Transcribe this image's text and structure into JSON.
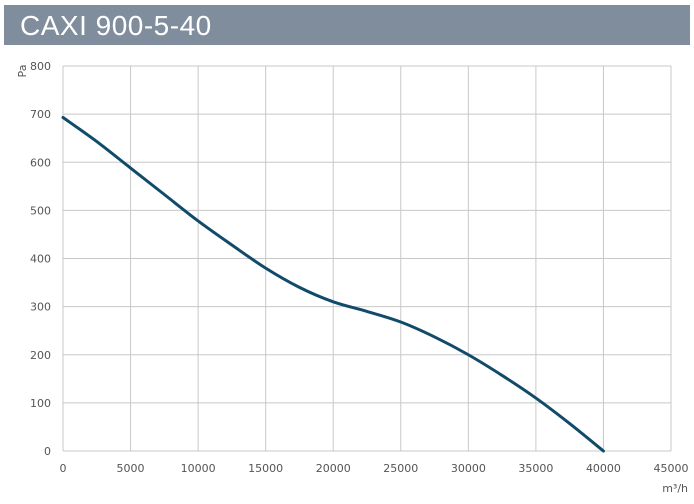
{
  "title": "CAXI 900-5-40",
  "colors": {
    "title_bar": "#7f8d9d",
    "title_text": "#ffffff",
    "grid": "#c8c8c8",
    "curve": "#114b6a",
    "tick_text": "#555555"
  },
  "chart_data": {
    "type": "line",
    "title": "CAXI 900-5-40",
    "xlabel": "m³/h",
    "ylabel": "Pa",
    "xlim": [
      0,
      45000
    ],
    "ylim": [
      0,
      800
    ],
    "x_ticks": [
      0,
      5000,
      10000,
      15000,
      20000,
      25000,
      30000,
      35000,
      40000,
      45000
    ],
    "y_ticks": [
      0,
      100,
      200,
      300,
      400,
      500,
      600,
      700,
      800
    ],
    "x_tick_labels": [
      "0",
      "5000",
      "10000",
      "15000",
      "20000",
      "25000",
      "30000",
      "35000",
      "40000",
      "45000"
    ],
    "y_tick_labels": [
      "0",
      "100",
      "200",
      "300",
      "400",
      "500",
      "600",
      "700",
      "800"
    ],
    "grid": true,
    "series": [
      {
        "x": [
          0,
          2500,
          5000,
          7500,
          10000,
          12500,
          15000,
          17500,
          20000,
          22500,
          25000,
          27500,
          30000,
          32500,
          35000,
          37500,
          40000
        ],
        "y": [
          693,
          643,
          588,
          533,
          478,
          428,
          380,
          340,
          310,
          290,
          268,
          237,
          200,
          157,
          110,
          57,
          0
        ]
      }
    ]
  }
}
